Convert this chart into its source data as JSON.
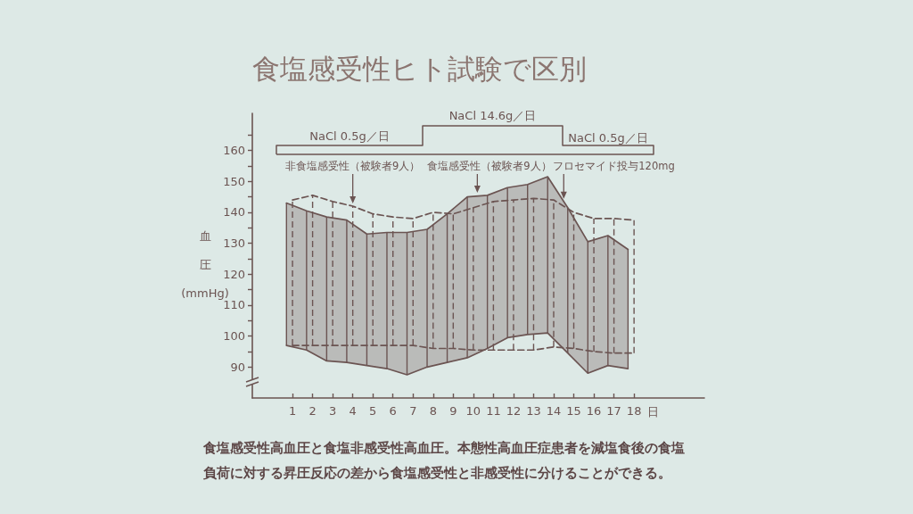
{
  "chart_data": [
    {
      "type": "other",
      "annotations": [
        "NaCl 0.5g／日",
        "NaCl 14.6g／日",
        "NaCl 0.5g／日"
      ]
    },
    {
      "type": "line",
      "title": "食塩感受性ヒト試験で区別",
      "xlabel": "日",
      "ylabel": "血圧 (mmHg)",
      "series": [
        {
          "color": "#6b5452",
          "line_style": "solid",
          "x": [
            0.7,
            1.7,
            2.7,
            3.7,
            4.7,
            5.7,
            6.7,
            7.7,
            8.7,
            9.7,
            10.7,
            11.7,
            12.7,
            13.7,
            14.7,
            15.7,
            16.7,
            17.7
          ],
          "values": [
            143,
            140.5,
            138.5,
            137.5,
            133,
            133.5,
            133.5,
            134.5,
            139.5,
            145,
            145.5,
            148,
            149,
            151.5,
            141.5,
            130.5,
            132.5,
            128
          ],
          "lower": [
            97,
            95.5,
            92,
            91.5,
            90.5,
            89.5,
            87.5,
            90,
            91.5,
            93,
            96,
            99.5,
            100.5,
            101,
            94.5,
            88,
            90.5,
            89.5
          ],
          "upper": [
            143,
            140.5,
            138.5,
            137.5,
            133,
            133.5,
            133.5,
            134.5,
            139.5,
            145,
            145.5,
            148,
            149,
            151.5,
            141.5,
            130.5,
            132.5,
            128
          ],
          "errors": [
            [
              97,
              143
            ],
            [
              95.5,
              140.5
            ],
            [
              92,
              138.5
            ],
            [
              91.5,
              137.5
            ],
            [
              90.5,
              133
            ],
            [
              89.5,
              133.5
            ],
            [
              87.5,
              133.5
            ],
            [
              90,
              134.5
            ],
            [
              91.5,
              139.5
            ],
            [
              93,
              145
            ],
            [
              96,
              145.5
            ],
            [
              99.5,
              148
            ],
            [
              100.5,
              149
            ],
            [
              101,
              151.5
            ],
            [
              94.5,
              141.5
            ],
            [
              88,
              130.5
            ],
            [
              90.5,
              132.5
            ],
            [
              89.5,
              128
            ]
          ]
        },
        {
          "color": "#6b5452",
          "line_style": "solid",
          "x": [
            0.7,
            1.7,
            2.7,
            3.7,
            4.7,
            5.7,
            6.7,
            7.7,
            8.7,
            9.7,
            10.7,
            11.7,
            12.7,
            13.7,
            14.7,
            15.7,
            16.7,
            17.7
          ],
          "values": [
            97,
            95.5,
            92,
            91.5,
            90.5,
            89.5,
            87.5,
            90,
            91.5,
            93,
            96,
            99.5,
            100.5,
            101,
            94.5,
            88,
            90.5,
            89.5
          ]
        },
        {
          "color": "#6b5452",
          "line_style": "dashed",
          "x": [
            1,
            2,
            3,
            4,
            5,
            6,
            7,
            8,
            9,
            10,
            11,
            12,
            13,
            14,
            15,
            16,
            17,
            18
          ],
          "values": [
            144,
            145.5,
            143.5,
            142,
            139.5,
            138.5,
            138,
            140,
            139.5,
            141.5,
            143.5,
            144,
            144.5,
            144,
            140,
            138,
            138,
            137.5
          ],
          "errors": [
            [
              97,
              144
            ],
            [
              97,
              145.5
            ],
            [
              97,
              143.5
            ],
            [
              97,
              142
            ],
            [
              97,
              139.5
            ],
            [
              97,
              138.5
            ],
            [
              97,
              138
            ],
            [
              96,
              140
            ],
            [
              96,
              139.5
            ],
            [
              95.5,
              141.5
            ],
            [
              95.5,
              143.5
            ],
            [
              95.5,
              144
            ],
            [
              95.5,
              144.5
            ],
            [
              96.5,
              144
            ],
            [
              96,
              140
            ],
            [
              95,
              138
            ],
            [
              94.5,
              138
            ],
            [
              94.5,
              137.5
            ]
          ]
        },
        {
          "color": "#6b5452",
          "line_style": "dashed",
          "x": [
            1,
            2,
            3,
            4,
            5,
            6,
            7,
            8,
            9,
            10,
            11,
            12,
            13,
            14,
            15,
            16,
            17,
            18
          ],
          "values": [
            97,
            97,
            97,
            97,
            97,
            97,
            97,
            96,
            96,
            95.5,
            95.5,
            95.5,
            95.5,
            96.5,
            96,
            95,
            94.5,
            94.5
          ]
        }
      ],
      "xlim": [
        -1,
        21.5
      ],
      "xticks": [
        1,
        2,
        3,
        4,
        5,
        6,
        7,
        8,
        9,
        10,
        11,
        12,
        13,
        14,
        15,
        16,
        17,
        18
      ],
      "ylim": [
        80,
        172
      ],
      "yticks": [
        90,
        {
          "value": 95,
          "label": null
        },
        100,
        {
          "value": 105,
          "label": null
        },
        110,
        {
          "value": 115,
          "label": null
        },
        120,
        {
          "value": 125,
          "label": null
        },
        130,
        {
          "value": 135,
          "label": null
        },
        140,
        {
          "value": 145,
          "label": null
        },
        150,
        {
          "value": 155,
          "label": null
        },
        160,
        {
          "value": 165,
          "label": null
        }
      ],
      "annotations": [
        {
          "text": "非食塩感受性（被験者9人）",
          "x": 4,
          "y": 142
        },
        {
          "text": "食塩感受性（被験者9人）",
          "x": 10.2,
          "y": 145.5
        },
        {
          "text": "フロセマイド投与120mg",
          "x": 14.5,
          "y": 143.5
        },
        "食塩感受性高血圧と食塩非感受性高血圧。本態性高血圧症患者を減塩食後の食塩負荷に対する昇圧反応の差から食塩感受性と非感受性に分けることができる。"
      ],
      "marker": "none"
    }
  ]
}
